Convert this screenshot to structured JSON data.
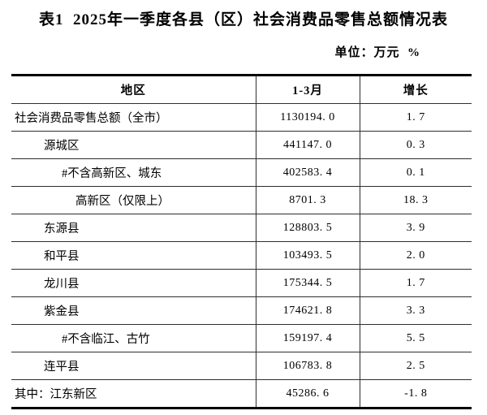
{
  "title": "表1  2025年一季度各县（区）社会消费品零售总额情况表",
  "unit_note": "单位：万元  %",
  "table": {
    "columns": [
      "地区",
      "1-3月",
      "增长"
    ],
    "rows": [
      {
        "region": "社会消费品零售总额（全市）",
        "value": "1130194. 0",
        "growth": "1. 7",
        "indent": 0
      },
      {
        "region": "源城区",
        "value": "441147. 0",
        "growth": "0. 3",
        "indent": 1
      },
      {
        "region": "#不含高新区、城东",
        "value": "402583. 4",
        "growth": "0. 1",
        "indent": 2
      },
      {
        "region": "高新区（仅限上）",
        "value": "8701. 3",
        "growth": "18. 3",
        "indent": 3
      },
      {
        "region": "东源县",
        "value": "128803. 5",
        "growth": "3. 9",
        "indent": 1
      },
      {
        "region": "和平县",
        "value": "103493. 5",
        "growth": "2. 0",
        "indent": 1
      },
      {
        "region": "龙川县",
        "value": "175344. 5",
        "growth": "1. 7",
        "indent": 1
      },
      {
        "region": "紫金县",
        "value": "174621. 8",
        "growth": "3. 3",
        "indent": 1
      },
      {
        "region": "#不含临江、古竹",
        "value": "159197. 4",
        "growth": "5. 5",
        "indent": 2
      },
      {
        "region": "连平县",
        "value": "106783. 8",
        "growth": "2. 5",
        "indent": 1
      },
      {
        "region": "其中：江东新区",
        "value": "45286. 6",
        "growth": "-1. 8",
        "indent": 0
      }
    ]
  }
}
